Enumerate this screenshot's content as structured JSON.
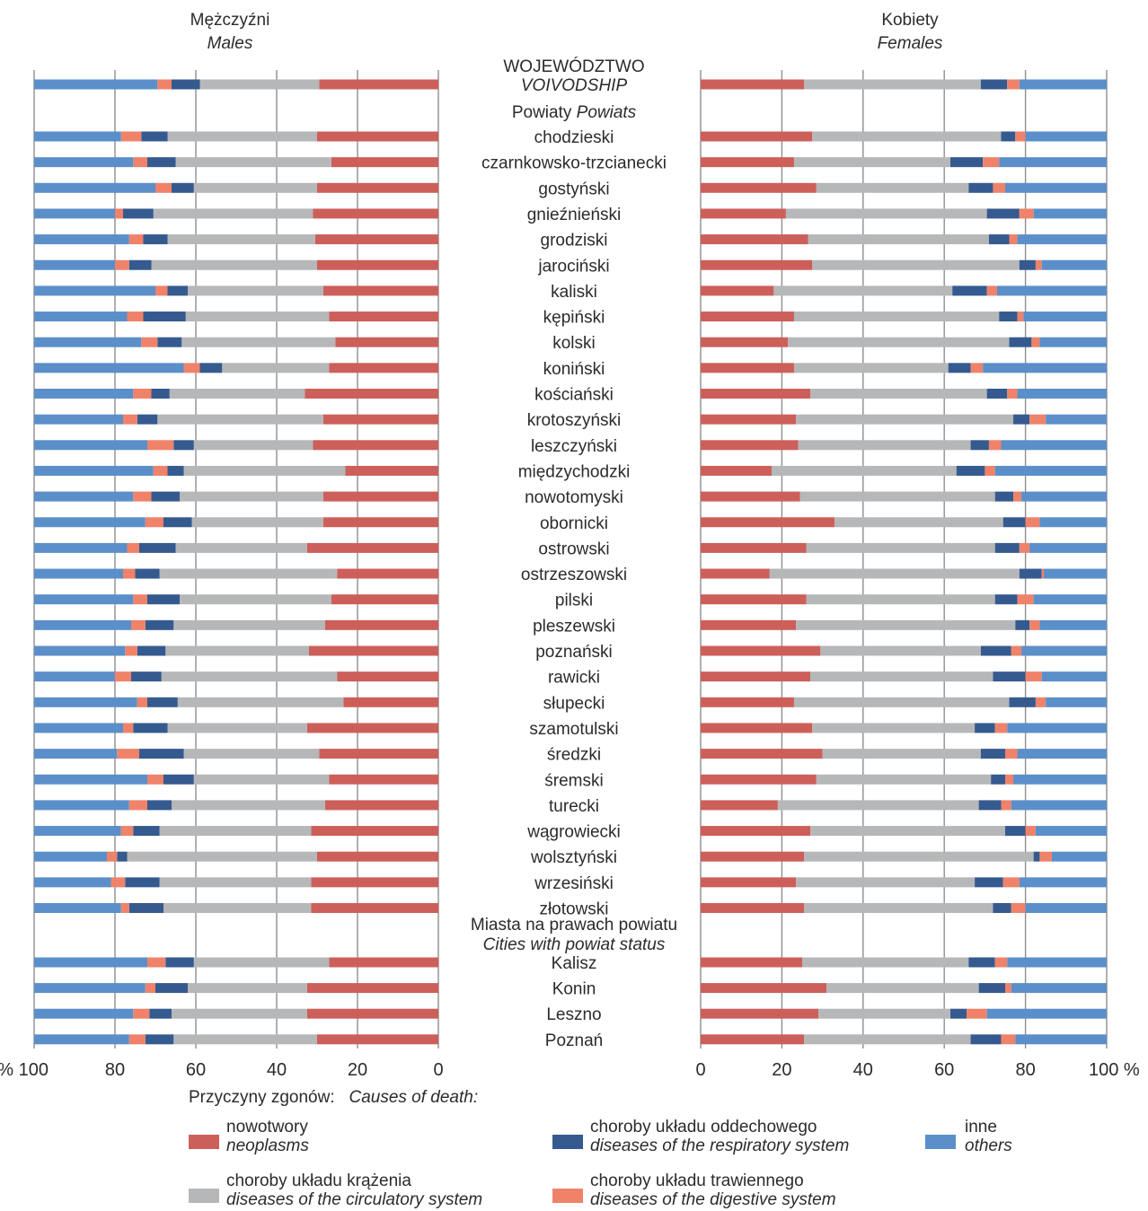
{
  "chart_data": {
    "type": "bar",
    "stacked": true,
    "orientation": "horizontal",
    "panels": {
      "left": {
        "title": "Mężczyźni",
        "subtitle": "Males",
        "direction": "right-to-left"
      },
      "right": {
        "title": "Kobiety",
        "subtitle": "Females",
        "direction": "left-to-right"
      }
    },
    "axis": {
      "left_ticks": [
        "% 100",
        "80",
        "60",
        "40",
        "20",
        "0"
      ],
      "right_ticks": [
        "0",
        "20",
        "40",
        "60",
        "80",
        "100 %"
      ],
      "xlim": [
        0,
        100
      ],
      "grid": true
    },
    "center_headers": {
      "voivodship": [
        "WOJEWÓDZTWO",
        "VOIVODSHIP"
      ],
      "powiats": [
        "Powiaty",
        "Powiats"
      ],
      "cities": [
        "Miasta na prawach powiatu",
        "Cities with powiat status"
      ]
    },
    "series_order": [
      "nowotwory",
      "krazenia",
      "oddechowe",
      "trawienne",
      "inne"
    ],
    "colors": {
      "nowotwory": "#cd5f5a",
      "krazenia": "#b6b7b9",
      "oddechowe": "#355a8f",
      "trawienne": "#f0826a",
      "inne": "#5b8fc9"
    },
    "categories": [
      "VOIVODSHIP",
      "chodzieski",
      "czarnkowsko-trzcianecki",
      "gostyński",
      "gnieźnieński",
      "grodziski",
      "jarociński",
      "kaliski",
      "kępiński",
      "kolski",
      "koniński",
      "kościański",
      "krotoszyński",
      "leszczyński",
      "międzychodzki",
      "nowotomyski",
      "obornicki",
      "ostrowski",
      "ostrzeszowski",
      "pilski",
      "pleszewski",
      "poznański",
      "rawicki",
      "słupecki",
      "szamotulski",
      "średzki",
      "śremski",
      "turecki",
      "wągrowiecki",
      "wolsztyński",
      "wrzesiński",
      "złotowski",
      "Kalisz",
      "Konin",
      "Leszno",
      "Poznań"
    ],
    "rows": [
      {
        "label": "",
        "group": "voivodship",
        "male": [
          29.5,
          29.5,
          7,
          3.5,
          30.5
        ],
        "female": [
          25.5,
          43.5,
          6.5,
          3,
          21.5
        ]
      },
      {
        "label": "chodzieski",
        "group": "powiat",
        "male": [
          30,
          37,
          6.5,
          5,
          21.5
        ],
        "female": [
          27.5,
          46.5,
          3.5,
          2.5,
          20
        ]
      },
      {
        "label": "czarnkowsko-trzcianecki",
        "group": "powiat",
        "male": [
          26.5,
          38.5,
          7,
          3.5,
          24.5
        ],
        "female": [
          23,
          38.5,
          8,
          4,
          26.5
        ]
      },
      {
        "label": "gostyński",
        "group": "powiat",
        "male": [
          30,
          30.5,
          5.5,
          4,
          30
        ],
        "female": [
          28.5,
          37.5,
          6,
          3,
          25
        ]
      },
      {
        "label": "gnieźnieński",
        "group": "powiat",
        "male": [
          31,
          39.5,
          7.5,
          2,
          20
        ],
        "female": [
          21,
          49.5,
          8,
          3.5,
          18
        ]
      },
      {
        "label": "grodziski",
        "group": "powiat",
        "male": [
          30.5,
          36.5,
          6,
          3.5,
          23.5
        ],
        "female": [
          26.5,
          44.5,
          5,
          2,
          22
        ]
      },
      {
        "label": "jarociński",
        "group": "powiat",
        "male": [
          30,
          41,
          5.5,
          3.5,
          20
        ],
        "female": [
          27.5,
          51,
          4,
          1.5,
          16
        ]
      },
      {
        "label": "kaliski",
        "group": "powiat",
        "male": [
          28.5,
          33.5,
          5,
          3,
          30
        ],
        "female": [
          18,
          44,
          8.5,
          2.5,
          27
        ]
      },
      {
        "label": "kępiński",
        "group": "powiat",
        "male": [
          27,
          35.5,
          10.5,
          4,
          23
        ],
        "female": [
          23,
          50.5,
          4.5,
          1.5,
          20.5
        ]
      },
      {
        "label": "kolski",
        "group": "powiat",
        "male": [
          25.5,
          38,
          6,
          4,
          26.5
        ],
        "female": [
          21.5,
          54.5,
          5.5,
          2,
          16.5
        ]
      },
      {
        "label": "koniński",
        "group": "powiat",
        "male": [
          27,
          26.5,
          5.5,
          4,
          37
        ],
        "female": [
          23,
          38,
          5.5,
          3,
          30.5
        ]
      },
      {
        "label": "kościański",
        "group": "powiat",
        "male": [
          33,
          33.5,
          4.5,
          4.5,
          24.5
        ],
        "female": [
          27,
          43.5,
          5,
          2.5,
          22
        ]
      },
      {
        "label": "krotoszyński",
        "group": "powiat",
        "male": [
          28.5,
          41,
          5,
          3.5,
          22
        ],
        "female": [
          23.5,
          53.5,
          4,
          4,
          15
        ]
      },
      {
        "label": "leszczyński",
        "group": "powiat",
        "male": [
          31,
          29.5,
          5,
          6.5,
          28
        ],
        "female": [
          24,
          42.5,
          4.5,
          3,
          26
        ]
      },
      {
        "label": "międzychodzki",
        "group": "powiat",
        "male": [
          23,
          40,
          4,
          3.5,
          29.5
        ],
        "female": [
          17.5,
          45.5,
          7,
          2.5,
          27.5
        ]
      },
      {
        "label": "nowotomyski",
        "group": "powiat",
        "male": [
          28.5,
          35.5,
          7,
          4.5,
          24.5
        ],
        "female": [
          24.5,
          48,
          4.5,
          2,
          21
        ]
      },
      {
        "label": "obornicki",
        "group": "powiat",
        "male": [
          28.5,
          32.5,
          7,
          4.5,
          27.5
        ],
        "female": [
          33,
          41.5,
          5.5,
          3.5,
          16.5
        ]
      },
      {
        "label": "ostrowski",
        "group": "powiat",
        "male": [
          32.5,
          32.5,
          9,
          3,
          23
        ],
        "female": [
          26,
          46.5,
          6,
          2.5,
          19
        ]
      },
      {
        "label": "ostrzeszowski",
        "group": "powiat",
        "male": [
          25,
          44,
          6,
          3,
          22
        ],
        "female": [
          17,
          61.5,
          5.5,
          0.5,
          15.5
        ]
      },
      {
        "label": "pilski",
        "group": "powiat",
        "male": [
          26.5,
          37.5,
          8,
          3.5,
          24.5
        ],
        "female": [
          26,
          46.5,
          5.5,
          4,
          18
        ]
      },
      {
        "label": "pleszewski",
        "group": "powiat",
        "male": [
          28,
          37.5,
          7,
          3.5,
          24
        ],
        "female": [
          23.5,
          54,
          3.5,
          2.5,
          16.5
        ]
      },
      {
        "label": "poznański",
        "group": "powiat",
        "male": [
          32,
          35.5,
          7,
          3,
          22.5
        ],
        "female": [
          29.5,
          39.5,
          7.5,
          2.5,
          21
        ]
      },
      {
        "label": "rawicki",
        "group": "powiat",
        "male": [
          25,
          43.5,
          7.5,
          4,
          20
        ],
        "female": [
          27,
          45,
          8,
          4,
          16
        ]
      },
      {
        "label": "słupecki",
        "group": "powiat",
        "male": [
          23.5,
          41,
          7.5,
          2.5,
          25.5
        ],
        "female": [
          23,
          53,
          6.5,
          2.5,
          15
        ]
      },
      {
        "label": "szamotulski",
        "group": "powiat",
        "male": [
          32.5,
          34.5,
          8.5,
          2.5,
          22
        ],
        "female": [
          27.5,
          40,
          5,
          3,
          24.5
        ]
      },
      {
        "label": "średzki",
        "group": "powiat",
        "male": [
          29.5,
          33.5,
          11,
          5.5,
          20.5
        ],
        "female": [
          30,
          39,
          6,
          3,
          22
        ]
      },
      {
        "label": "śremski",
        "group": "powiat",
        "male": [
          27,
          33.5,
          7.5,
          4,
          28
        ],
        "female": [
          28.5,
          43,
          3.5,
          2,
          23
        ]
      },
      {
        "label": "turecki",
        "group": "powiat",
        "male": [
          28,
          38,
          6,
          4.5,
          23.5
        ],
        "female": [
          19,
          49.5,
          5.5,
          2.5,
          23.5
        ]
      },
      {
        "label": "wągrowiecki",
        "group": "powiat",
        "male": [
          31.5,
          37.5,
          6.5,
          3,
          21.5
        ],
        "female": [
          27,
          48,
          5,
          2.5,
          17.5
        ]
      },
      {
        "label": "wolsztyński",
        "group": "powiat",
        "male": [
          30,
          47,
          2.5,
          2.5,
          18
        ],
        "female": [
          25.5,
          56.5,
          1.5,
          3,
          13.5
        ]
      },
      {
        "label": "wrzesiński",
        "group": "powiat",
        "male": [
          31.5,
          37.5,
          8.5,
          3.5,
          19
        ],
        "female": [
          23.5,
          44,
          7,
          4,
          21.5
        ]
      },
      {
        "label": "złotowski",
        "group": "powiat",
        "male": [
          31.5,
          36.5,
          8.5,
          2,
          21.5
        ],
        "female": [
          25.5,
          46.5,
          4.5,
          3.5,
          20
        ]
      },
      {
        "label": "Kalisz",
        "group": "city",
        "male": [
          27,
          33.5,
          7,
          4.5,
          28
        ],
        "female": [
          25,
          41,
          6.5,
          3,
          24.5
        ]
      },
      {
        "label": "Konin",
        "group": "city",
        "male": [
          32.5,
          29.5,
          8,
          2.5,
          27.5
        ],
        "female": [
          31,
          37.5,
          6.5,
          1.5,
          23.5
        ]
      },
      {
        "label": "Leszno",
        "group": "city",
        "male": [
          32.5,
          33.5,
          5.5,
          4,
          24.5
        ],
        "female": [
          29,
          32.5,
          4,
          5,
          29.5
        ]
      },
      {
        "label": "Poznań",
        "group": "city",
        "male": [
          30,
          35.5,
          7,
          4,
          23.5
        ],
        "female": [
          25.5,
          41,
          7.5,
          3.5,
          22.5
        ]
      }
    ],
    "legend": {
      "title": "Przyczyny zgonów:",
      "title_en": "Causes of death:",
      "items": [
        {
          "key": "nowotwory",
          "pl": "nowotwory",
          "en": "neoplasms"
        },
        {
          "key": "krazenia",
          "pl": "choroby układu krążenia",
          "en": "diseases of the circulatory system"
        },
        {
          "key": "oddechowe",
          "pl": "choroby układu oddechowego",
          "en": "diseases of the respiratory system"
        },
        {
          "key": "trawienne",
          "pl": "choroby układu trawiennego",
          "en": "diseases of the digestive system"
        },
        {
          "key": "inne",
          "pl": "inne",
          "en": "others"
        }
      ]
    }
  }
}
